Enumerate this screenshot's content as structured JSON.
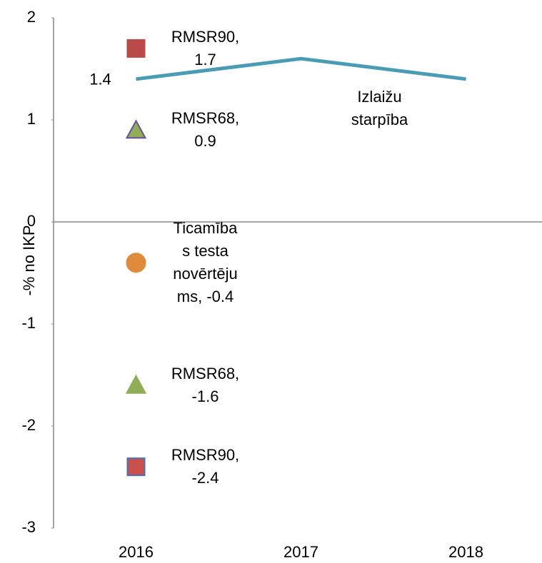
{
  "chart_data": {
    "type": "line",
    "ylabel": "-% no IKP",
    "categories": [
      "2016",
      "2017",
      "2018"
    ],
    "ylim": [
      -3,
      2
    ],
    "yticks": [
      -3,
      -2,
      -1,
      0,
      1,
      2
    ],
    "series": [
      {
        "name": "Izlaižu starpība",
        "type": "line",
        "color": "#4a9cb5",
        "values": [
          1.4,
          1.6,
          1.4
        ]
      },
      {
        "type": "scatter",
        "marker": "square",
        "color": "#b94a48",
        "edgecolor": "#b94a48",
        "values": [
          1.7,
          null,
          null
        ],
        "value_labels": [
          "RMSR90, 1.7",
          null,
          null
        ]
      },
      {
        "type": "scatter",
        "marker": "triangle",
        "color": "#8fae55",
        "edgecolor": "#6b4f9a",
        "values": [
          0.9,
          null,
          null
        ],
        "value_labels": [
          "RMSR68, 0.9",
          null,
          null
        ]
      },
      {
        "type": "scatter",
        "marker": "circle",
        "color": "#e08a3c",
        "edgecolor": "#e08a3c",
        "values": [
          -0.4,
          null,
          null
        ],
        "value_labels": [
          "Ticamības testa novērtējums, -0.4",
          null,
          null
        ]
      },
      {
        "type": "scatter",
        "marker": "triangle",
        "color": "#8fae55",
        "edgecolor": "#8fae55",
        "values": [
          -1.6,
          null,
          null
        ],
        "value_labels": [
          "RMSR68, -1.6",
          null,
          null
        ]
      },
      {
        "type": "scatter",
        "marker": "square",
        "color": "#c9504d",
        "edgecolor": "#4a6fb5",
        "values": [
          -2.4,
          null,
          null
        ],
        "value_labels": [
          "RMSR90, -2.4",
          null,
          null
        ]
      }
    ]
  }
}
